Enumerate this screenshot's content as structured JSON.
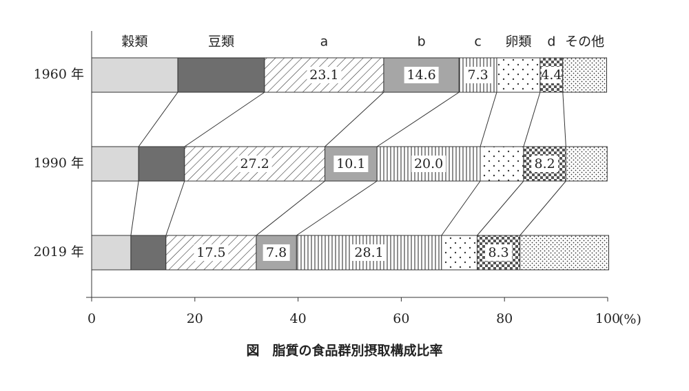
{
  "chart_data": {
    "type": "stacked-barh",
    "title": "図　脂質の食品群別摂取構成比率",
    "xlabel": "(%)",
    "categories": [
      "1960 年",
      "1990 年",
      "2019 年"
    ],
    "xlim": [
      0,
      100
    ],
    "xticks": [
      0,
      20,
      40,
      60,
      80,
      100
    ],
    "series": [
      {
        "name": "穀類",
        "color": "#d9d9d9",
        "pattern": "solid",
        "values": [
          16.7,
          9.1,
          7.6
        ]
      },
      {
        "name": "豆類",
        "color": "#6e6e6e",
        "pattern": "solid",
        "values": [
          16.8,
          8.9,
          6.8
        ]
      },
      {
        "name": "a",
        "color": "#333333",
        "pattern": "diagonal",
        "values": [
          23.1,
          27.2,
          17.5
        ],
        "value_labels": [
          "23.1",
          "27.2",
          "17.5"
        ]
      },
      {
        "name": "b",
        "color": "#a6a6a6",
        "pattern": "solid",
        "values": [
          14.6,
          10.1,
          7.8
        ],
        "value_labels": [
          "14.6",
          "10.1",
          "7.8"
        ]
      },
      {
        "name": "c",
        "color": "#333333",
        "pattern": "vertical",
        "values": [
          7.3,
          20.0,
          28.1
        ],
        "value_labels": [
          "7.3",
          "20.0",
          "28.1"
        ]
      },
      {
        "name": "卵類",
        "color": "#333333",
        "pattern": "dots",
        "values": [
          8.4,
          8.4,
          6.9
        ]
      },
      {
        "name": "d",
        "color": "#555555",
        "pattern": "checker",
        "values": [
          4.4,
          8.2,
          8.3
        ],
        "value_labels": [
          "4.4",
          "8.2",
          "8.3"
        ]
      },
      {
        "name": "その他",
        "color": "#333333",
        "pattern": "dense-dots",
        "values": [
          8.5,
          8.0,
          17.2
        ]
      }
    ]
  }
}
